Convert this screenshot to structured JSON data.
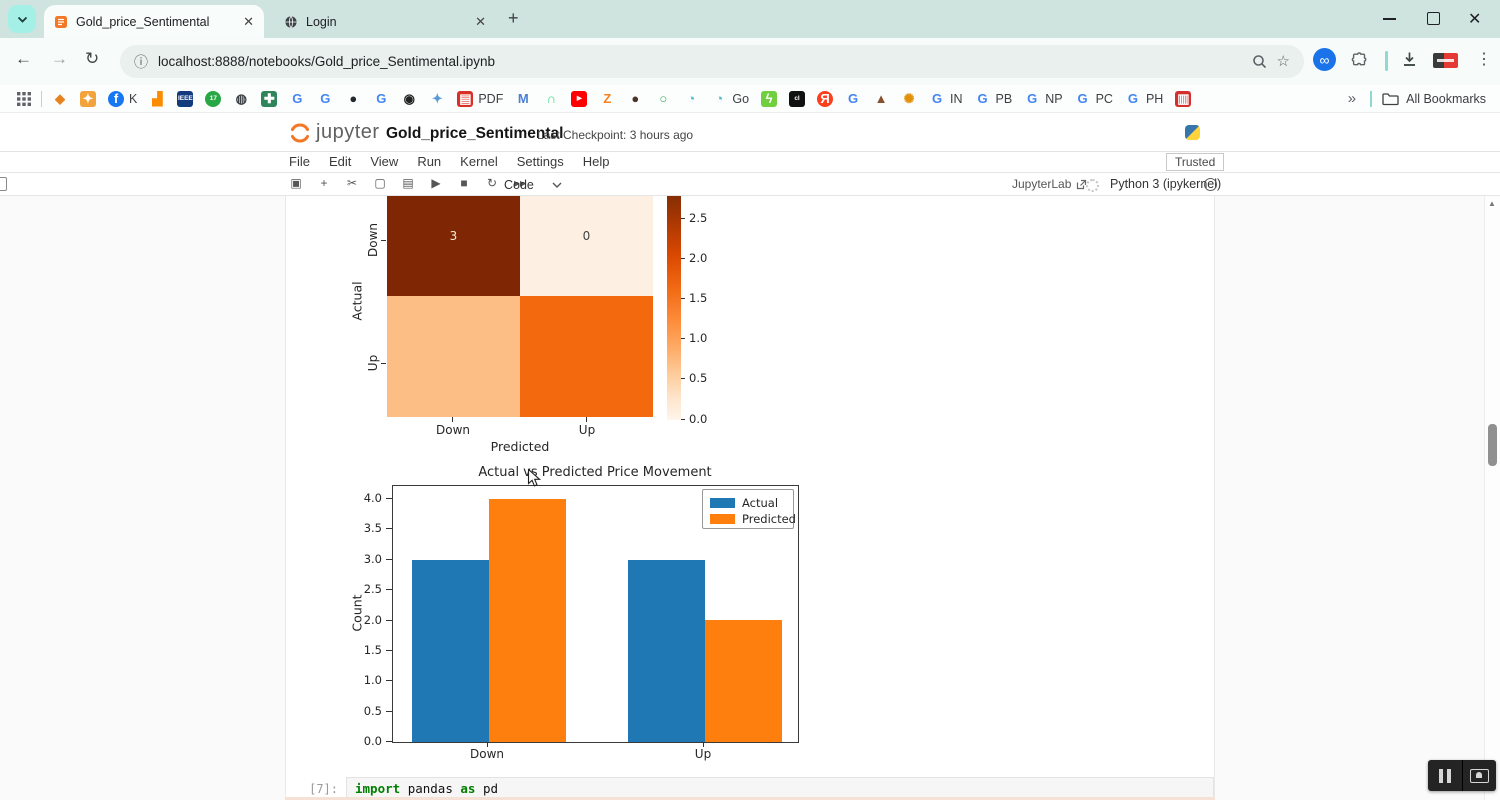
{
  "browser": {
    "tabs": [
      {
        "title": "Gold_price_Sentimental"
      },
      {
        "title": "Login"
      }
    ],
    "url": "localhost:8888/notebooks/Gold_price_Sentimental.ipynb",
    "overflow": "»",
    "all_bookmarks": "All Bookmarks",
    "bookmarks": [
      {
        "g": "◆",
        "fg": "#e8821e"
      },
      {
        "g": "✦",
        "bg": "#f2a33c",
        "fg": "#ffffff"
      },
      {
        "g": "f",
        "bg": "#1877f2",
        "fg": "#ffffff",
        "round": true,
        "l": "K"
      },
      {
        "g": "▟",
        "fg": "#fb8c00"
      },
      {
        "g": "IEEE",
        "bg": "#123a7d",
        "fg": "#ffffff",
        "small": true
      },
      {
        "g": "17",
        "bg": "#28a745",
        "fg": "#ffffff",
        "small": true,
        "round": true
      },
      {
        "g": "◍",
        "fg": "#3e4347"
      },
      {
        "g": "✚",
        "bg": "#2f855a",
        "fg": "#ffffff"
      },
      {
        "g": "G",
        "fg": "#4285f4"
      },
      {
        "g": "G",
        "fg": "#4285f4"
      },
      {
        "g": "●",
        "fg": "#24292e"
      },
      {
        "g": "G",
        "fg": "#4285f4"
      },
      {
        "g": "◉",
        "fg": "#222222"
      },
      {
        "g": "✦",
        "fg": "#5b9bd5"
      },
      {
        "g": "▤",
        "bg": "#d93025",
        "fg": "#ffffff",
        "l": "PDF"
      },
      {
        "g": "M",
        "fg": "#4a7fd4"
      },
      {
        "g": "∩",
        "fg": "#3ddc84"
      },
      {
        "g": "▶",
        "bg": "#ff0000",
        "fg": "#ffffff",
        "small": true
      },
      {
        "g": "Z",
        "fg": "#f5821f"
      },
      {
        "g": "●",
        "fg": "#4a3528"
      },
      {
        "g": "○",
        "fg": "#34a853"
      },
      {
        "g": "◔",
        "fg": "#45b8c8"
      },
      {
        "g": "◔",
        "fg": "#45b8c8",
        "l": "Go"
      },
      {
        "g": "ϟ",
        "bg": "#6fcf3f",
        "fg": "#ffffff"
      },
      {
        "g": "cl",
        "bg": "#111111",
        "fg": "#ffffff",
        "small": true
      },
      {
        "g": "Я",
        "bg": "#fc3f1d",
        "fg": "#ffffff",
        "round": true
      },
      {
        "g": "G",
        "fg": "#4285f4"
      },
      {
        "g": "▲",
        "fg": "#8a4f2d"
      },
      {
        "g": "✺",
        "fg": "#e2920a"
      },
      {
        "g": "G",
        "fg": "#4285f4",
        "l": "IN"
      },
      {
        "g": "G",
        "fg": "#4285f4",
        "l": "PB"
      },
      {
        "g": "G",
        "fg": "#4285f4",
        "l": "NP"
      },
      {
        "g": "G",
        "fg": "#4285f4",
        "l": "PC"
      },
      {
        "g": "G",
        "fg": "#4285f4",
        "l": "PH"
      },
      {
        "g": "▥",
        "bg": "#d32f2f",
        "fg": "#ffffff"
      }
    ]
  },
  "jupyter": {
    "logo": "jupyter",
    "title": "Gold_price_Sentimental",
    "checkpoint": "Last Checkpoint: 3 hours ago",
    "menus": [
      "File",
      "Edit",
      "View",
      "Run",
      "Kernel",
      "Settings",
      "Help"
    ],
    "trusted": "Trusted",
    "toolbar_icons": [
      {
        "name": "save-icon",
        "glyph": "▣"
      },
      {
        "name": "add-cell-icon",
        "glyph": "+"
      },
      {
        "name": "cut-cell-icon",
        "glyph": "✂"
      },
      {
        "name": "copy-cell-icon",
        "glyph": "▢"
      },
      {
        "name": "paste-cell-icon",
        "glyph": "▤"
      },
      {
        "name": "run-cell-icon",
        "glyph": "▶"
      },
      {
        "name": "interrupt-kernel-icon",
        "glyph": "■"
      },
      {
        "name": "restart-kernel-icon",
        "glyph": "↻"
      },
      {
        "name": "run-all-cells-icon",
        "glyph": "▸▸"
      }
    ],
    "celltype": "Code",
    "jupyterlab": "JupyterLab",
    "kernel": "Python 3 (ipykernel)"
  },
  "code_cell": {
    "prompt": "[7]:",
    "kw1": "import",
    "mod": "pandas",
    "kw2": "as",
    "alias": "pd"
  },
  "chart_data": [
    {
      "type": "heatmap",
      "xlabel": "Predicted",
      "ylabel": "Actual",
      "x_categories": [
        "Down",
        "Up"
      ],
      "y_categories": [
        "Down",
        "Up"
      ],
      "matrix": [
        [
          3,
          0
        ],
        [
          1,
          2
        ]
      ],
      "visible_annotations": [
        [
          "3",
          "0"
        ],
        [
          "",
          ""
        ]
      ],
      "cell_colors": [
        [
          "#7f2704",
          "#fdf0e2"
        ],
        [
          "#fdbe85",
          "#f3690e"
        ]
      ],
      "annotation_colors": [
        [
          "#f7ead8",
          "#424242"
        ],
        [
          "",
          ""
        ]
      ],
      "colormap": "Oranges",
      "vmin": 0,
      "vmax": 3,
      "colorbar_ticks": [
        "2.5",
        "2.0",
        "1.5",
        "1.0",
        "0.5",
        "0.0"
      ]
    },
    {
      "type": "bar",
      "title": "Actual vs Predicted Price Movement",
      "xlabel": "",
      "ylabel": "Count",
      "categories": [
        "Down",
        "Up"
      ],
      "series": [
        {
          "name": "Actual",
          "color": "#1f77b4",
          "values": [
            3,
            3
          ]
        },
        {
          "name": "Predicted",
          "color": "#ff7f0e",
          "values": [
            4,
            2
          ]
        }
      ],
      "yticks": [
        "4.0",
        "3.5",
        "3.0",
        "2.5",
        "2.0",
        "1.5",
        "1.0",
        "0.5",
        "0.0"
      ],
      "ylim": [
        0,
        4.21
      ],
      "grid": false,
      "legend_position": "upper right"
    }
  ]
}
